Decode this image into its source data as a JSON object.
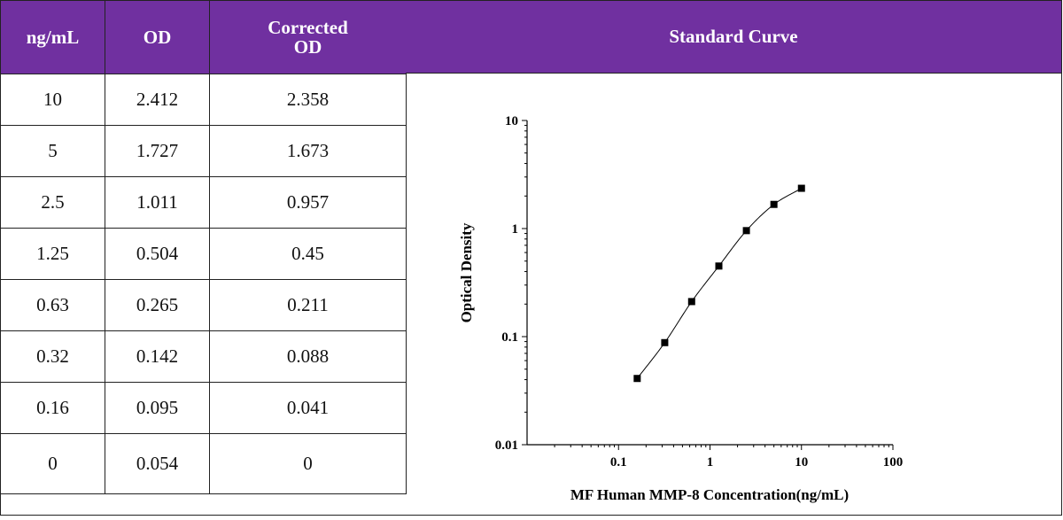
{
  "table": {
    "headers": [
      "ng/mL",
      "OD",
      "Corrected OD"
    ],
    "rows": [
      [
        "10",
        "2.412",
        "2.358"
      ],
      [
        "5",
        "1.727",
        "1.673"
      ],
      [
        "2.5",
        "1.011",
        "0.957"
      ],
      [
        "1.25",
        "0.504",
        "0.45"
      ],
      [
        "0.63",
        "0.265",
        "0.211"
      ],
      [
        "0.32",
        "0.142",
        "0.088"
      ],
      [
        "0.16",
        "0.095",
        "0.041"
      ],
      [
        "0",
        "0.054",
        "0"
      ]
    ]
  },
  "curve_header": "Standard Curve",
  "colors": {
    "header_bg": "#7030a0",
    "header_text": "#ffffff",
    "marker": "#000000"
  },
  "chart_data": {
    "type": "scatter",
    "xlabel": "MF Human MMP-8 Concentration(ng/mL)",
    "ylabel": "Optical Density",
    "xscale": "log",
    "yscale": "log",
    "xlim": [
      0.01,
      100
    ],
    "ylim": [
      0.01,
      10
    ],
    "xticks": [
      "0.1",
      "1",
      "10",
      "100"
    ],
    "yticks": [
      "0.01",
      "0.1",
      "1",
      "10"
    ],
    "fit_line": true,
    "series": [
      {
        "x": [
          0.16,
          0.32,
          0.63,
          1.25,
          2.5,
          5,
          10
        ],
        "y": [
          0.041,
          0.088,
          0.211,
          0.45,
          0.957,
          1.673,
          2.358
        ]
      }
    ]
  }
}
